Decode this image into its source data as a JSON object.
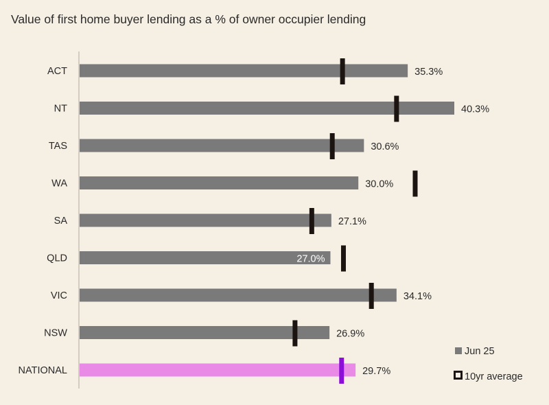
{
  "chart_data": {
    "type": "bar",
    "orientation": "horizontal",
    "title": "Value of first home buyer lending as a % of owner occupier lending",
    "xlabel": "",
    "ylabel": "",
    "xlim": [
      0,
      47.3
    ],
    "grid": false,
    "legend_position": "bottom-right",
    "categories": [
      "ACT",
      "NT",
      "TAS",
      "WA",
      "SA",
      "QLD",
      "VIC",
      "NSW",
      "NATIONAL"
    ],
    "series": [
      {
        "name": "Jun 25",
        "values": [
          35.3,
          40.3,
          30.6,
          30.0,
          27.1,
          27.0,
          34.1,
          26.9,
          29.7
        ],
        "labels": [
          "35.3%",
          "40.3%",
          "30.6%",
          "30.0%",
          "27.1%",
          "27.0%",
          "34.1%",
          "26.9%",
          "29.7%"
        ],
        "color": "#7a7a7a",
        "highlight_color": "#e88ae6"
      },
      {
        "name": "10yr average",
        "values": [
          28.3,
          34.1,
          27.2,
          36.1,
          25.0,
          28.4,
          31.4,
          23.2,
          28.2
        ],
        "color": "#1c1410",
        "highlight_color": "#8b0fd6"
      }
    ],
    "highlight_category": "NATIONAL",
    "inside_label_categories": [
      "QLD"
    ]
  },
  "colors": {
    "background": "#f6efe4",
    "axis": "#c8c0b4",
    "bar": "#7a7a7a",
    "national_bar": "#e88ae6",
    "marker": "#1c1410",
    "national_marker": "#8b0fd6"
  }
}
